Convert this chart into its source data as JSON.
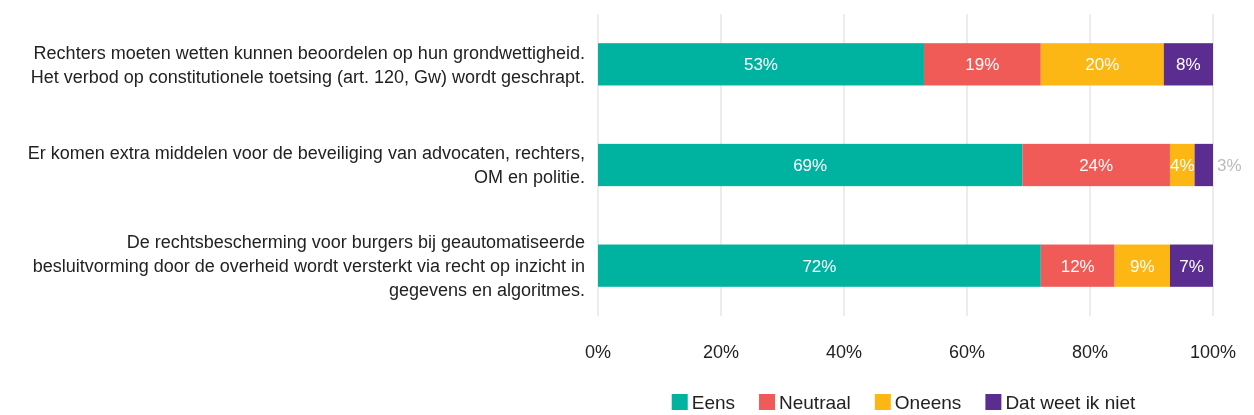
{
  "chart_data": {
    "type": "bar",
    "orientation": "horizontal",
    "stacked": true,
    "categories": [
      "Rechters moeten wetten kunnen beoordelen op hun grondwettigheid. Het verbod op constitutionele toetsing (art. 120, Gw) wordt geschrapt.",
      "Er komen extra middelen voor de beveiliging van advocaten, rechters, OM en politie.",
      "De rechtsbescherming voor burgers bij geautomatiseerde besluitvorming door de overheid wordt versterkt via recht op inzicht in gegevens en algoritmes."
    ],
    "series": [
      {
        "name": "Eens",
        "color": "#00b3a1",
        "values": [
          53,
          69,
          72
        ],
        "value_labels": [
          "53%",
          "69%",
          "72%"
        ]
      },
      {
        "name": "Neutraal",
        "color": "#f15b57",
        "values": [
          19,
          24,
          12
        ],
        "value_labels": [
          "19%",
          "24%",
          "12%"
        ]
      },
      {
        "name": "Oneens",
        "color": "#fdb714",
        "values": [
          20,
          4,
          9
        ],
        "value_labels": [
          "20%",
          "4%",
          "9%"
        ]
      },
      {
        "name": "Dat weet ik niet",
        "color": "#5c2d91",
        "values": [
          8,
          3,
          7
        ],
        "value_labels": [
          "8%",
          "3%",
          "7%"
        ]
      }
    ],
    "xlim": [
      0,
      100
    ],
    "xticks": [
      {
        "value": 0,
        "label": "0%"
      },
      {
        "value": 20,
        "label": "20%"
      },
      {
        "value": 40,
        "label": "40%"
      },
      {
        "value": 60,
        "label": "60%"
      },
      {
        "value": 80,
        "label": "80%"
      },
      {
        "value": 100,
        "label": "100%"
      }
    ],
    "grid": "x",
    "legend": "bottom"
  }
}
